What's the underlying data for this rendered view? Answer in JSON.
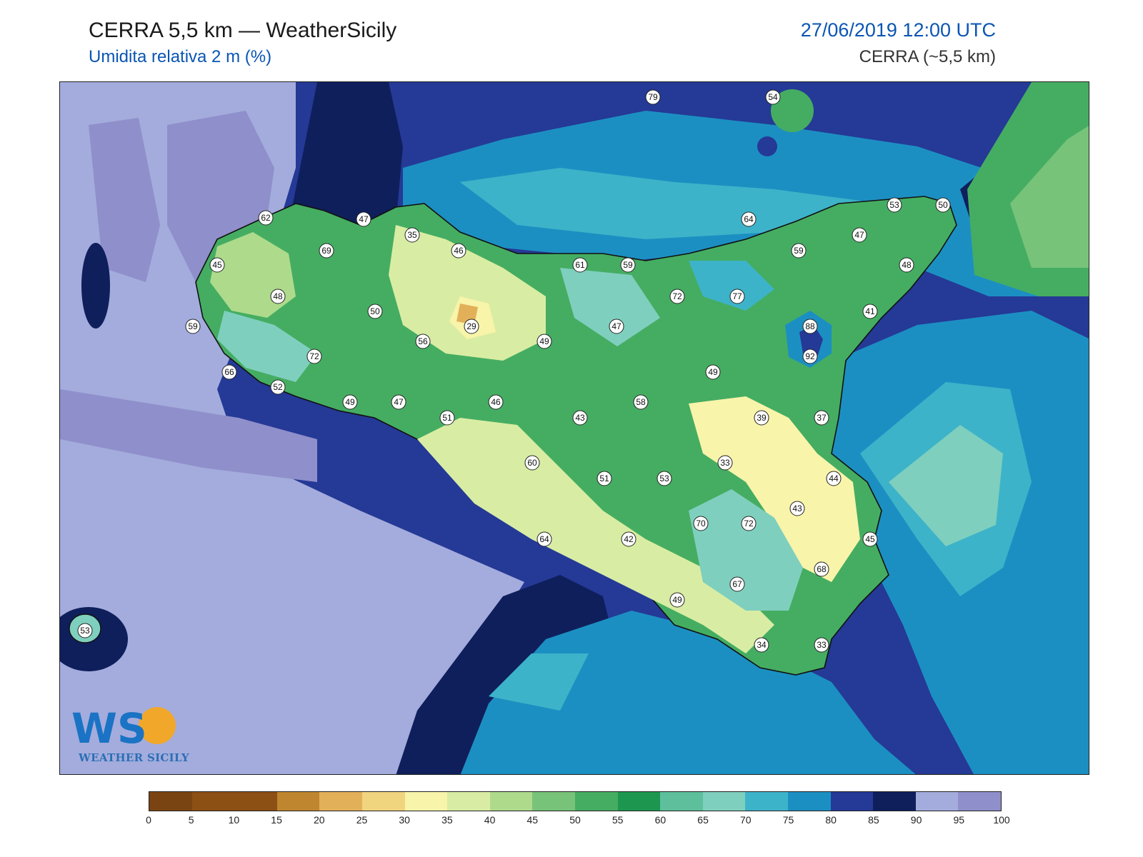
{
  "header": {
    "title": "CERRA 5,5 km — WeatherSicily",
    "subtitle": "Umidita relativa 2 m (%)",
    "datetime": "27/06/2019 12:00 UTC",
    "model": "CERRA (~5,5 km)"
  },
  "colorbar": {
    "ticks": [
      "0",
      "5",
      "10",
      "15",
      "20",
      "25",
      "30",
      "35",
      "40",
      "45",
      "50",
      "55",
      "60",
      "65",
      "70",
      "75",
      "80",
      "85",
      "90",
      "95",
      "100"
    ],
    "colors": [
      "#7a4412",
      "#8c4f14",
      "#8c4f14",
      "#c0862f",
      "#e3b05a",
      "#f1d57e",
      "#f8f4aa",
      "#d8eda3",
      "#aeda8c",
      "#77c37a",
      "#45ad62",
      "#1d974f",
      "#5dbf9b",
      "#7fcfbe",
      "#3db3c9",
      "#1c8fc2",
      "#253996",
      "#0f1f5c",
      "#a3acdc",
      "#8f8fcb"
    ]
  },
  "stations": [
    "79",
    "54",
    "62",
    "47",
    "35",
    "69",
    "46",
    "45",
    "48",
    "61",
    "59",
    "64",
    "53",
    "50",
    "47",
    "59",
    "48",
    "72",
    "77",
    "41",
    "59",
    "50",
    "56",
    "29",
    "49",
    "47",
    "88",
    "92",
    "72",
    "66",
    "52",
    "49",
    "47",
    "51",
    "46",
    "43",
    "58",
    "49",
    "39",
    "37",
    "60",
    "51",
    "53",
    "33",
    "44",
    "43",
    "70",
    "72",
    "45",
    "64",
    "42",
    "68",
    "67",
    "49",
    "34",
    "33",
    "53"
  ],
  "logo": {
    "text": "WEATHER SICILY",
    "mark": "WS"
  }
}
